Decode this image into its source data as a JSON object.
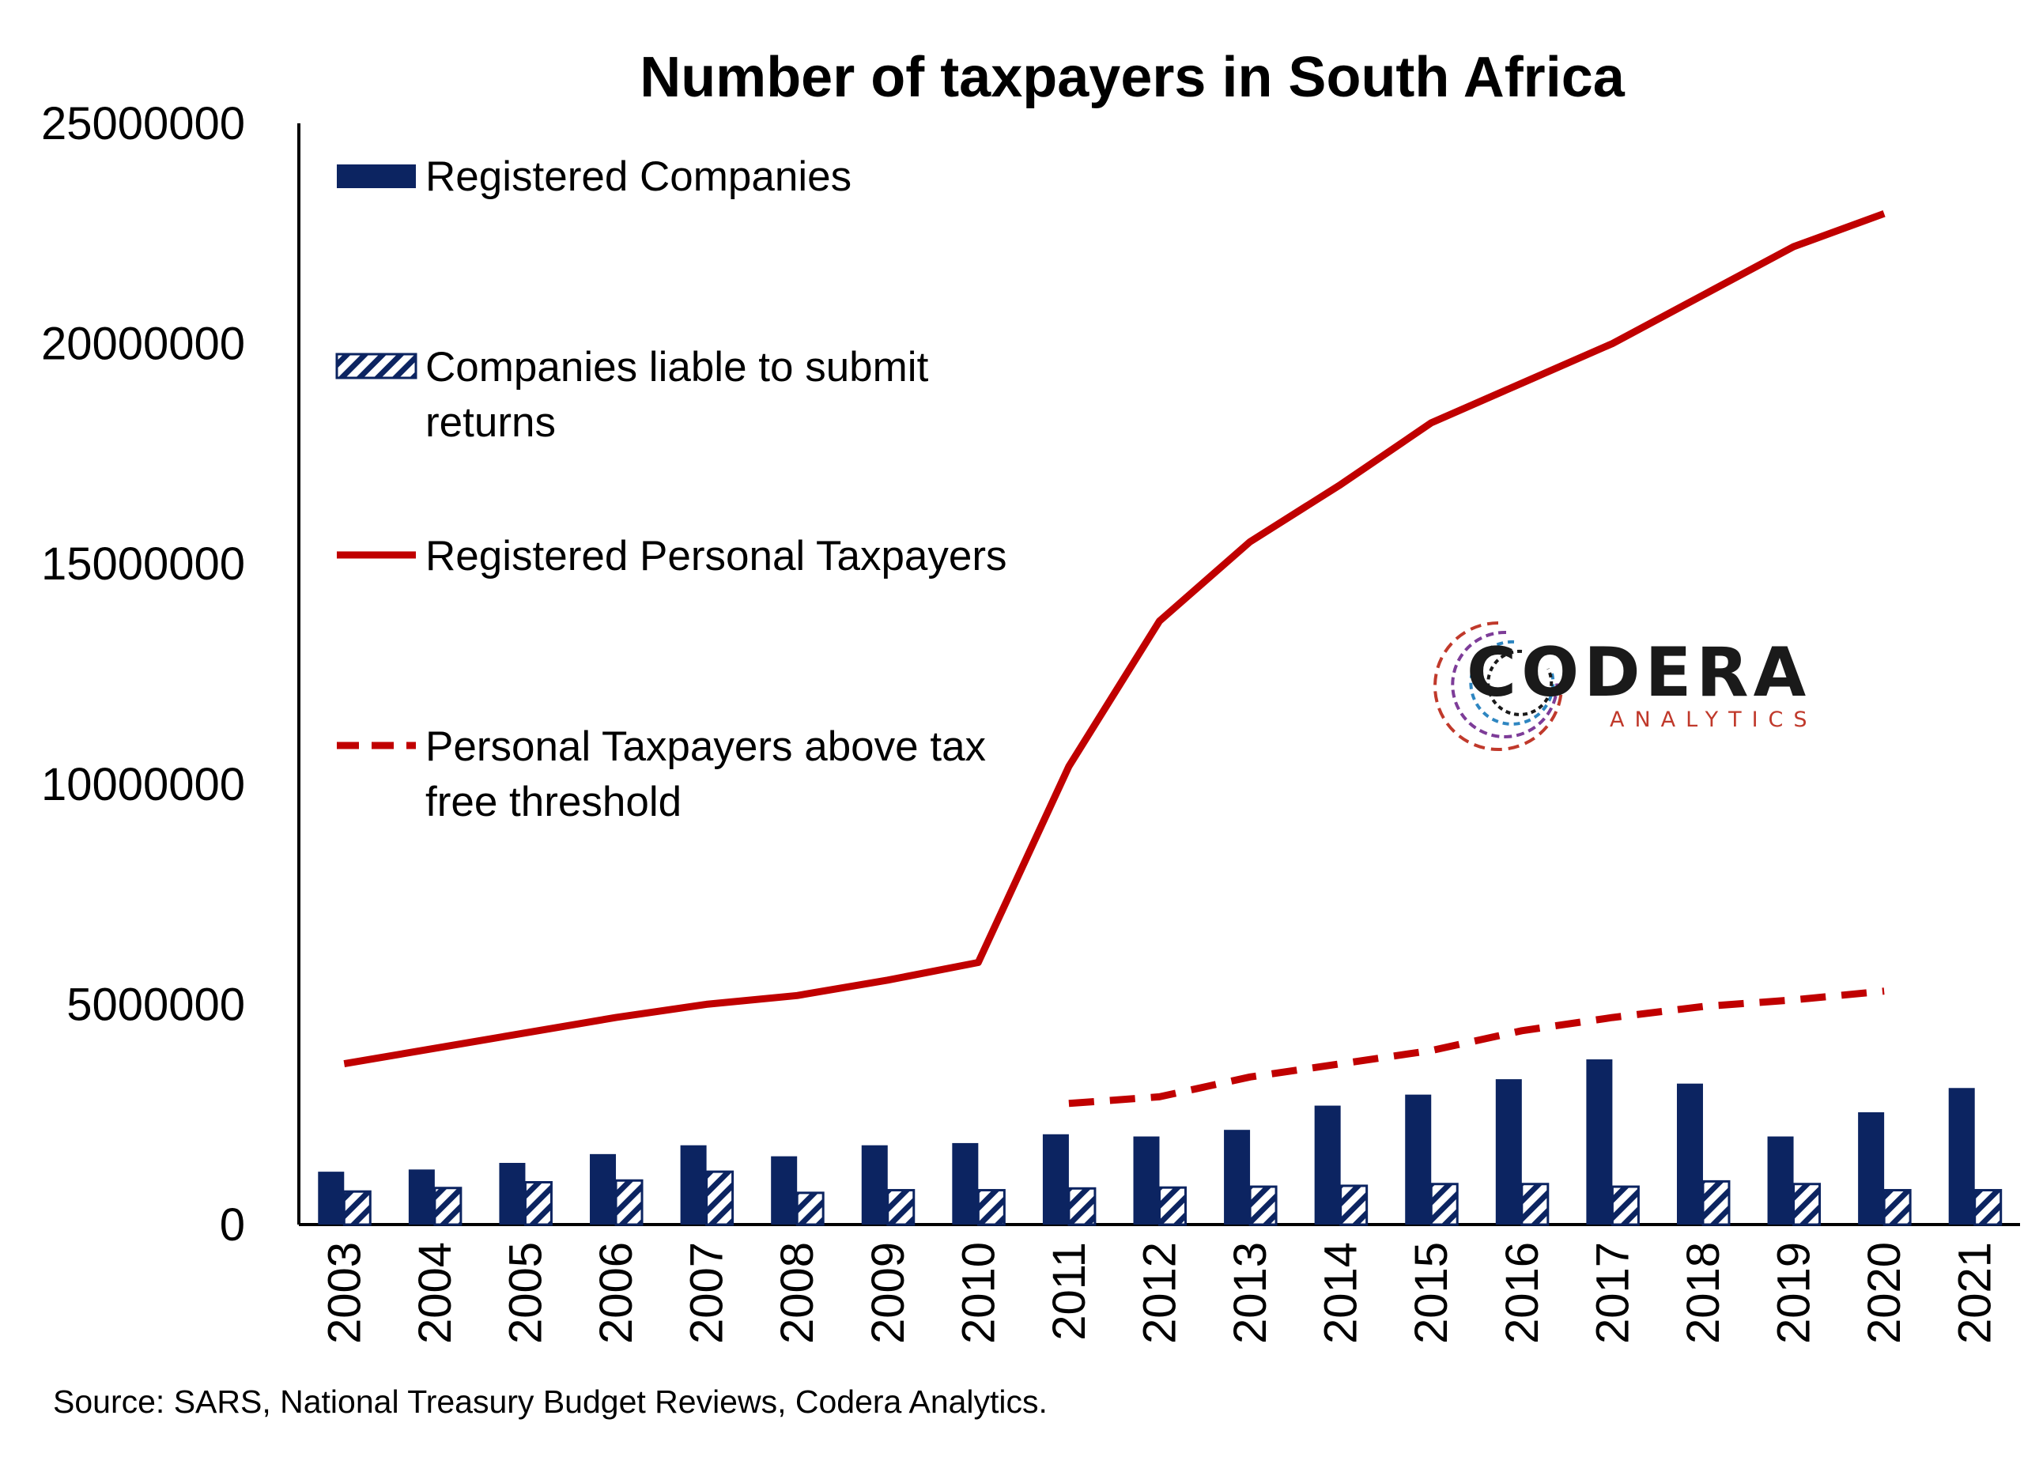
{
  "chart_data": {
    "type": "bar",
    "title": "Number of taxpayers in South Africa",
    "xlabel": "",
    "ylabel": "",
    "ylim": [
      0,
      25000000
    ],
    "yticks": [
      "0",
      "5000000",
      "10000000",
      "15000000",
      "20000000",
      "25000000"
    ],
    "categories": [
      "2003",
      "2004",
      "2005",
      "2006",
      "2007",
      "2008",
      "2009",
      "2010",
      "2011",
      "2012",
      "2013",
      "2014",
      "2015",
      "2016",
      "2017",
      "2018",
      "2019",
      "2020",
      "2021"
    ],
    "series": [
      {
        "name": "Registered Companies",
        "type": "bar",
        "pattern": "solid",
        "color": "#0c2461",
        "values": [
          1200000,
          1250000,
          1400000,
          1600000,
          1800000,
          1550000,
          1800000,
          1850000,
          2050000,
          2000000,
          2150000,
          2700000,
          2950000,
          3300000,
          3750000,
          3200000,
          2000000,
          2550000,
          3100000
        ]
      },
      {
        "name": "Companies liable to submit returns",
        "type": "bar",
        "pattern": "hatched",
        "color": "#0c2461",
        "values": [
          750000,
          830000,
          960000,
          1000000,
          1200000,
          720000,
          780000,
          780000,
          820000,
          840000,
          860000,
          880000,
          920000,
          920000,
          860000,
          980000,
          920000,
          780000,
          780000
        ]
      },
      {
        "name": "Registered Personal Taxpayers",
        "type": "line",
        "style": "solid",
        "color": "#c00000",
        "values": [
          3650000,
          4000000,
          4350000,
          4700000,
          5000000,
          5200000,
          5550000,
          5950000,
          10400000,
          13700000,
          15500000,
          16800000,
          18200000,
          19100000,
          20000000,
          21100000,
          22200000,
          22950000,
          null
        ]
      },
      {
        "name": "Personal Taxpayers above tax free threshold",
        "type": "line",
        "style": "dashed",
        "color": "#c00000",
        "values": [
          null,
          null,
          null,
          null,
          null,
          null,
          null,
          null,
          2750000,
          2900000,
          3350000,
          3650000,
          3950000,
          4400000,
          4700000,
          4950000,
          5100000,
          5300000,
          null
        ]
      }
    ],
    "legend": {
      "placement": "top-left",
      "entries": [
        "Registered Companies",
        "Companies liable to submit returns",
        "Registered Personal Taxpayers",
        "Personal Taxpayers above tax free threshold"
      ]
    },
    "grid": false
  },
  "legend_lines": {
    "reg_companies": [
      "Registered Companies"
    ],
    "liable_companies": [
      "Companies liable to submit",
      "returns"
    ],
    "reg_personal": [
      "Registered Personal Taxpayers"
    ],
    "above_threshold": [
      "Personal Taxpayers above tax",
      "free threshold"
    ]
  },
  "logo": {
    "name": "CODERA",
    "subtitle": "ANALYTICS",
    "colors": [
      "#1a1a1a",
      "#c0392b",
      "#2e86c1"
    ]
  },
  "source": "Source: SARS, National Treasury Budget Reviews, Codera Analytics."
}
